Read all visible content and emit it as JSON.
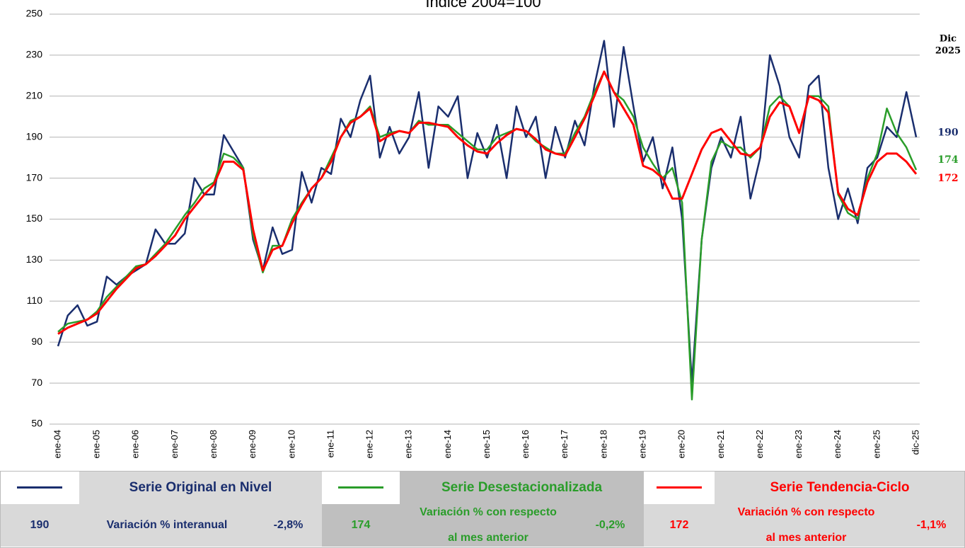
{
  "chart_data": {
    "type": "line",
    "title": "Índice 2004=100",
    "categories": [
      "ene-04",
      null,
      null,
      null,
      "ene-05",
      null,
      null,
      null,
      "ene-06",
      null,
      null,
      null,
      "ene-07",
      null,
      null,
      null,
      "ene-08",
      null,
      null,
      null,
      "ene-09",
      null,
      null,
      null,
      "ene-10",
      null,
      null,
      null,
      "ene-11",
      null,
      null,
      null,
      "ene-12",
      null,
      null,
      null,
      "ene-13",
      null,
      null,
      null,
      "ene-14",
      null,
      null,
      null,
      "ene-15",
      null,
      null,
      null,
      "ene-16",
      null,
      null,
      null,
      "ene-17",
      null,
      null,
      null,
      "ene-18",
      null,
      null,
      null,
      "ene-19",
      null,
      null,
      null,
      "ene-20",
      null,
      null,
      null,
      "ene-21",
      null,
      null,
      null,
      "ene-22",
      null,
      null,
      null,
      "ene-23",
      null,
      null,
      null,
      "ene-24",
      null,
      null,
      null,
      "ene-25",
      null,
      null,
      null,
      "dic-25"
    ],
    "series": [
      {
        "name": "Serie Original en Nivel",
        "color": "#1a2e6e",
        "values": [
          88,
          103,
          108,
          98,
          100,
          122,
          118,
          122,
          125,
          128,
          145,
          138,
          138,
          143,
          170,
          162,
          162,
          191,
          183,
          175,
          140,
          125,
          146,
          133,
          135,
          173,
          158,
          175,
          172,
          199,
          190,
          208,
          220,
          180,
          195,
          182,
          190,
          212,
          175,
          205,
          200,
          210,
          170,
          192,
          180,
          196,
          170,
          205,
          190,
          200,
          170,
          195,
          180,
          198,
          186,
          215,
          237,
          195,
          234,
          205,
          178,
          190,
          165,
          185,
          150,
          70,
          140,
          175,
          190,
          180,
          200,
          160,
          180,
          230,
          215,
          190,
          180,
          215,
          220,
          175,
          150,
          165,
          148,
          175,
          180,
          195,
          190,
          212,
          190
        ]
      },
      {
        "name": "Serie Desestacionalizada",
        "color": "#2a9d2a",
        "values": [
          95,
          99,
          100,
          101,
          105,
          112,
          117,
          122,
          127,
          128,
          133,
          138,
          145,
          152,
          158,
          165,
          168,
          182,
          180,
          175,
          142,
          124,
          137,
          137,
          150,
          158,
          165,
          170,
          180,
          190,
          198,
          200,
          205,
          190,
          192,
          193,
          192,
          198,
          196,
          196,
          196,
          192,
          188,
          184,
          184,
          190,
          192,
          194,
          193,
          188,
          185,
          182,
          182,
          192,
          200,
          212,
          222,
          212,
          208,
          200,
          185,
          177,
          170,
          175,
          158,
          62,
          140,
          178,
          188,
          185,
          185,
          180,
          185,
          205,
          210,
          205,
          192,
          210,
          210,
          205,
          162,
          153,
          150,
          170,
          182,
          204,
          192,
          185,
          174
        ]
      },
      {
        "name": "Serie Tendencia-Ciclo",
        "color": "#ff0000",
        "values": [
          94,
          97,
          99,
          101,
          104,
          110,
          116,
          121,
          126,
          128,
          132,
          137,
          142,
          150,
          156,
          162,
          167,
          178,
          178,
          174,
          145,
          125,
          135,
          137,
          148,
          157,
          165,
          170,
          178,
          190,
          197,
          200,
          204,
          188,
          191,
          193,
          192,
          197,
          197,
          196,
          195,
          190,
          186,
          183,
          182,
          187,
          191,
          194,
          193,
          189,
          184,
          182,
          181,
          190,
          199,
          210,
          222,
          212,
          204,
          196,
          176,
          174,
          170,
          160,
          160,
          172,
          184,
          192,
          194,
          188,
          182,
          181,
          185,
          200,
          207,
          205,
          192,
          210,
          208,
          202,
          163,
          155,
          152,
          168,
          178,
          182,
          182,
          178,
          172
        ]
      }
    ],
    "ylim": [
      50,
      250
    ],
    "yticks": [
      50,
      70,
      90,
      110,
      130,
      150,
      170,
      190,
      210,
      230,
      250
    ],
    "grid": true,
    "annotation": [
      "Dic",
      "2025"
    ]
  },
  "summary": [
    {
      "value": "190",
      "label": "Variación % interanual",
      "change": "-2,8%"
    },
    {
      "value": "174",
      "label": [
        "Variación % con respecto",
        "al mes anterior"
      ],
      "change": "-0,2%"
    },
    {
      "value": "172",
      "label": [
        "Variación % con respecto",
        "al mes anterior"
      ],
      "change": "-1,1%"
    }
  ]
}
